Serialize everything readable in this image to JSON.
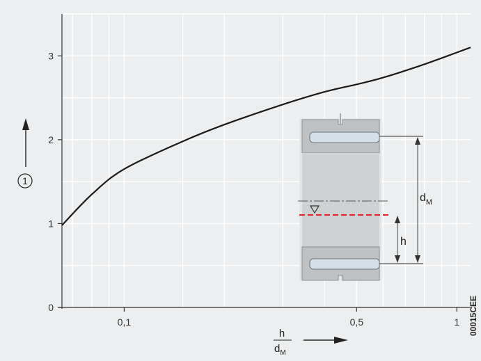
{
  "chart_data": {
    "type": "line",
    "x_scale": "log",
    "x_ticks": [
      {
        "value": 0.1,
        "label": "0,1"
      },
      {
        "value": 0.5,
        "label": "0,5"
      },
      {
        "value": 1,
        "label": "1"
      }
    ],
    "y_ticks": [
      {
        "value": 0,
        "label": "0"
      },
      {
        "value": 1,
        "label": "1"
      },
      {
        "value": 2,
        "label": "2"
      },
      {
        "value": 3,
        "label": "3"
      }
    ],
    "xlim": [
      0.065,
      1.1
    ],
    "ylim": [
      0,
      3.5
    ],
    "grid": true,
    "series": [
      {
        "x": [
          0.065,
          0.08,
          0.1,
          0.15,
          0.2,
          0.3,
          0.4,
          0.5,
          0.6,
          0.8,
          1.0,
          1.1
        ],
        "y": [
          0.98,
          1.35,
          1.65,
          1.98,
          2.18,
          2.42,
          2.57,
          2.66,
          2.74,
          2.9,
          3.04,
          3.1
        ]
      }
    ],
    "ylabel_marker": "1",
    "xlabel": {
      "numerator": "h",
      "denominator_base": "d",
      "denominator_sub": "M"
    }
  },
  "inset": {
    "dimension_dm_base": "d",
    "dimension_dm_sub": "M",
    "dimension_h": "h"
  },
  "figure_code": "00015CEE",
  "colors": {
    "background": "#eceeef",
    "grid": "#ffffff",
    "curve": "#1a1a1a",
    "axis": "#333333",
    "housing": "#bfc2c4",
    "roller": "#d3e0ea",
    "fill_line": "#d9242a"
  }
}
